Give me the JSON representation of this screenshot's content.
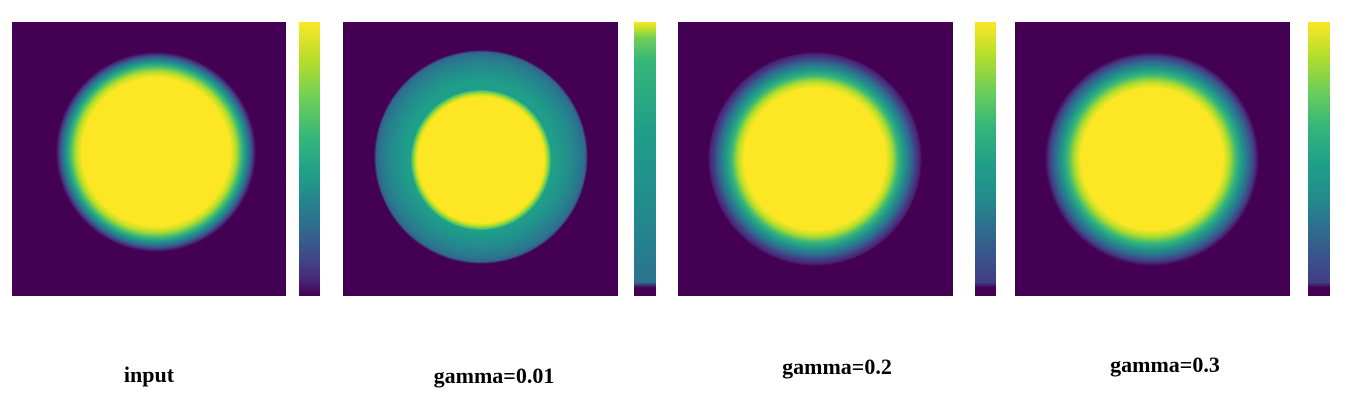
{
  "colormap": "viridis",
  "colors": {
    "background": "#440154",
    "low": "#440154",
    "mid": "#21918c",
    "high": "#fde725"
  },
  "panels": [
    {
      "caption": "input"
    },
    {
      "caption": "gamma=0.01"
    },
    {
      "caption": "gamma=0.2"
    },
    {
      "caption": "gamma=0.3"
    }
  ]
}
